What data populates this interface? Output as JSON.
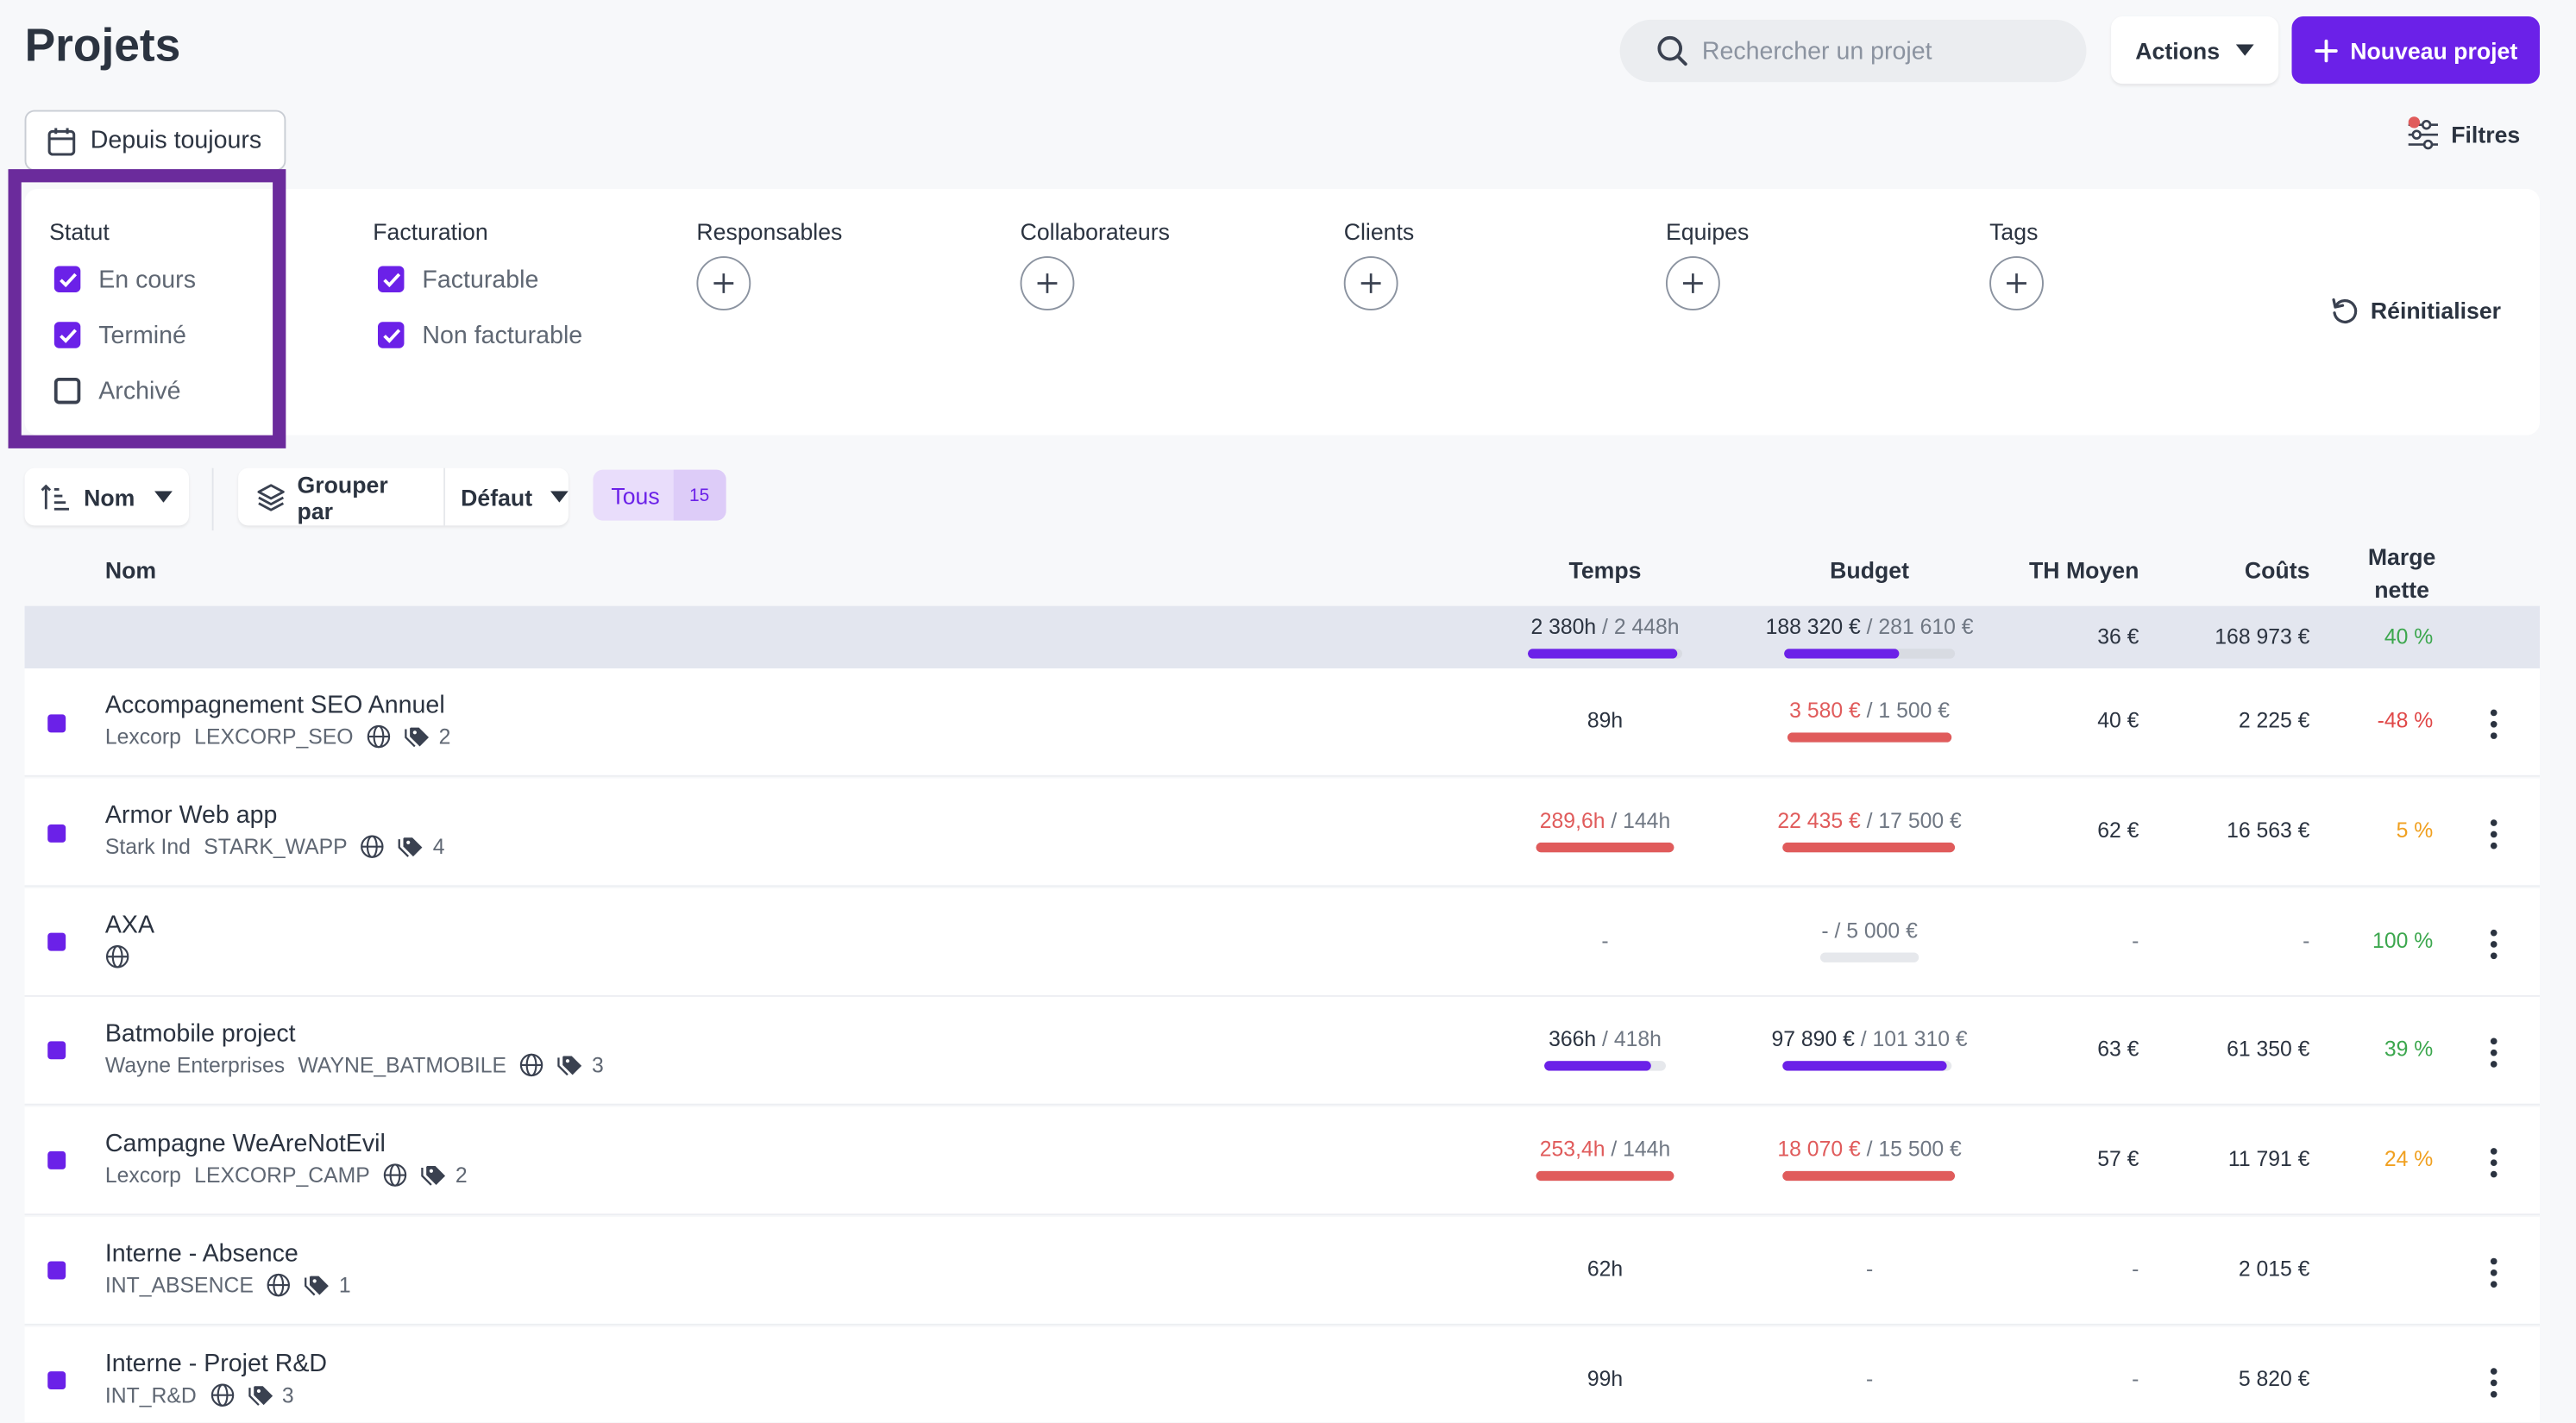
{
  "header": {
    "title": "Projets",
    "search_placeholder": "Rechercher un projet",
    "actions_label": "Actions",
    "new_project_label": "Nouveau projet",
    "date_range_label": "Depuis toujours",
    "filters_label": "Filtres"
  },
  "filters": {
    "statut": {
      "title": "Statut",
      "options": [
        {
          "label": "En cours",
          "checked": true
        },
        {
          "label": "Terminé",
          "checked": true
        },
        {
          "label": "Archivé",
          "checked": false
        }
      ]
    },
    "facturation": {
      "title": "Facturation",
      "options": [
        {
          "label": "Facturable",
          "checked": true
        },
        {
          "label": "Non facturable",
          "checked": true
        }
      ]
    },
    "responsables": "Responsables",
    "collaborateurs": "Collaborateurs",
    "clients": "Clients",
    "equipes": "Equipes",
    "tags": "Tags",
    "reset_label": "Réinitialiser"
  },
  "toolbar": {
    "sort_label": "Nom",
    "group_by_label": "Grouper par",
    "group_by_value": "Défaut",
    "all_label": "Tous",
    "all_count": "15"
  },
  "table": {
    "columns": {
      "name": "Nom",
      "time": "Temps",
      "budget": "Budget",
      "avg_rate": "TH Moyen",
      "costs": "Coûts",
      "margin_line1": "Marge",
      "margin_line2": "nette"
    },
    "totals": {
      "time_used": "2 380h",
      "time_sep": " / ",
      "time_total": "2 448h",
      "time_progress": 0.97,
      "budget_used": "188 320 €",
      "budget_sep": " / ",
      "budget_total": "281 610 €",
      "budget_progress": 0.67,
      "avg_rate": "36 €",
      "costs": "168 973 €",
      "margin": "40 %"
    },
    "rows": [
      {
        "name": "Accompagnement SEO Annuel",
        "client": "Lexcorp",
        "code": "LEXCORP_SEO",
        "tags": "2",
        "time_used": "89h",
        "budget_used": "3 580 €",
        "budget_sep": " / ",
        "budget_total": "1 500 €",
        "budget_progress": 1.0,
        "avg_rate": "40 €",
        "costs": "2 225 €",
        "margin": "-48 %"
      },
      {
        "name": "Armor Web app",
        "client": "Stark Ind",
        "code": "STARK_WAPP",
        "tags": "4",
        "time_used": "289,6h",
        "time_sep": " / ",
        "time_total": "144h",
        "time_progress": 1.0,
        "budget_used": "22 435 €",
        "budget_sep": " / ",
        "budget_total": "17 500 €",
        "budget_progress": 1.0,
        "avg_rate": "62 €",
        "costs": "16 563 €",
        "margin": "5 %"
      },
      {
        "name": "AXA",
        "time_used": "-",
        "budget_used": "-",
        "budget_sep": " / ",
        "budget_total": "5 000 €",
        "budget_progress": 0,
        "avg_rate": "-",
        "costs": "-",
        "margin": "100 %"
      },
      {
        "name": "Batmobile project",
        "client": "Wayne Enterprises",
        "code": "WAYNE_BATMOBILE",
        "tags": "3",
        "time_used": "366h",
        "time_sep": " / ",
        "time_total": "418h",
        "time_progress": 0.88,
        "budget_used": "97 890 €",
        "budget_sep": " / ",
        "budget_total": "101 310 €",
        "budget_progress": 0.97,
        "avg_rate": "63 €",
        "costs": "61 350 €",
        "margin": "39 %"
      },
      {
        "name": "Campagne WeAreNotEvil",
        "client": "Lexcorp",
        "code": "LEXCORP_CAMP",
        "tags": "2",
        "time_used": "253,4h",
        "time_sep": " / ",
        "time_total": "144h",
        "time_progress": 1.0,
        "budget_used": "18 070 €",
        "budget_sep": " / ",
        "budget_total": "15 500 €",
        "budget_progress": 1.0,
        "avg_rate": "57 €",
        "costs": "11 791 €",
        "margin": "24 %"
      },
      {
        "name": "Interne - Absence",
        "code": "INT_ABSENCE",
        "tags": "1",
        "time_used": "62h",
        "budget_dash": "-",
        "avg_rate": "-",
        "costs": "2 015 €"
      },
      {
        "name": "Interne - Projet R&D",
        "code": "INT_R&D",
        "tags": "3",
        "time_used": "99h",
        "budget_dash": "-",
        "avg_rate": "-",
        "costs": "5 820 €"
      }
    ]
  },
  "colors": {
    "accent": "#6b21e8",
    "over_budget": "#e05b5b",
    "margin_good": "#3ca74e",
    "margin_mid": "#f0a020",
    "margin_bad": "#e04848"
  }
}
